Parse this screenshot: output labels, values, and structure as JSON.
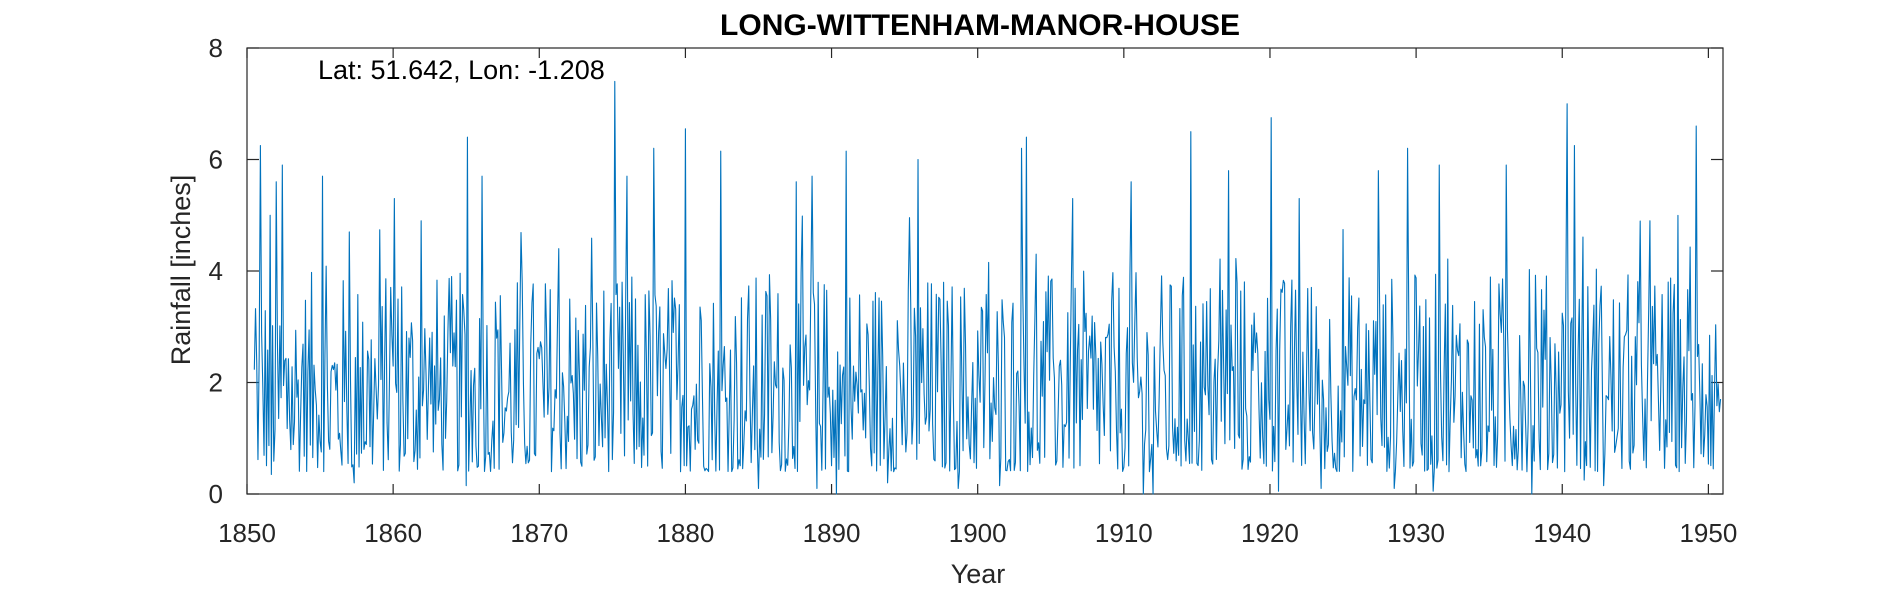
{
  "chart_data": {
    "type": "line",
    "title": "LONG-WITTENHAM-MANOR-HOUSE",
    "annotation": "Lat: 51.642, Lon: -1.208",
    "xlabel": "Year",
    "ylabel": "Rainfall [inches]",
    "xlim": [
      1850,
      1951
    ],
    "ylim": [
      0,
      8
    ],
    "xticks": [
      1850,
      1860,
      1870,
      1880,
      1890,
      1900,
      1910,
      1920,
      1930,
      1940,
      1950
    ],
    "yticks": [
      0,
      2,
      4,
      6,
      8
    ],
    "grid": false,
    "series": [
      {
        "color": "#0072BD",
        "resolution": "monthly",
        "start": 1850.5,
        "end": 1950.9,
        "baseline": 2.1,
        "peaks": [
          [
            1850.9,
            6.25
          ],
          [
            1851.6,
            5.0
          ],
          [
            1852.0,
            5.6
          ],
          [
            1852.4,
            5.9
          ],
          [
            1855.2,
            5.7
          ],
          [
            1857.0,
            4.7
          ],
          [
            1860.1,
            5.3
          ],
          [
            1861.9,
            4.9
          ],
          [
            1865.1,
            6.4
          ],
          [
            1866.1,
            5.7
          ],
          [
            1871.3,
            4.4
          ],
          [
            1875.2,
            7.4
          ],
          [
            1876.0,
            5.7
          ],
          [
            1877.8,
            6.2
          ],
          [
            1880.0,
            6.55
          ],
          [
            1882.4,
            6.15
          ],
          [
            1887.6,
            5.6
          ],
          [
            1888.7,
            5.7
          ],
          [
            1891.0,
            6.15
          ],
          [
            1895.9,
            6.0
          ],
          [
            1903.0,
            6.2
          ],
          [
            1903.3,
            6.4
          ],
          [
            1906.5,
            5.3
          ],
          [
            1910.5,
            5.6
          ],
          [
            1914.6,
            6.5
          ],
          [
            1917.2,
            5.8
          ],
          [
            1920.1,
            6.75
          ],
          [
            1922.0,
            5.3
          ],
          [
            1927.4,
            5.8
          ],
          [
            1929.4,
            6.2
          ],
          [
            1931.6,
            5.9
          ],
          [
            1936.2,
            5.9
          ],
          [
            1940.3,
            7.0
          ],
          [
            1940.8,
            6.25
          ],
          [
            1946.0,
            4.9
          ],
          [
            1949.2,
            6.6
          ]
        ],
        "troughs": [
          [
            1851.7,
            0.35
          ],
          [
            1857.3,
            0.2
          ],
          [
            1865.0,
            0.15
          ],
          [
            1885.0,
            0.1
          ],
          [
            1889.0,
            0.1
          ],
          [
            1890.3,
            0.0
          ],
          [
            1893.8,
            0.2
          ],
          [
            1898.7,
            0.1
          ],
          [
            1901.5,
            0.15
          ],
          [
            1911.3,
            0.0
          ],
          [
            1912.0,
            0.0
          ],
          [
            1920.6,
            0.05
          ],
          [
            1923.5,
            0.1
          ],
          [
            1928.5,
            0.1
          ],
          [
            1931.2,
            0.05
          ],
          [
            1937.9,
            0.0
          ],
          [
            1941.5,
            0.25
          ],
          [
            1942.8,
            0.15
          ]
        ]
      }
    ]
  }
}
